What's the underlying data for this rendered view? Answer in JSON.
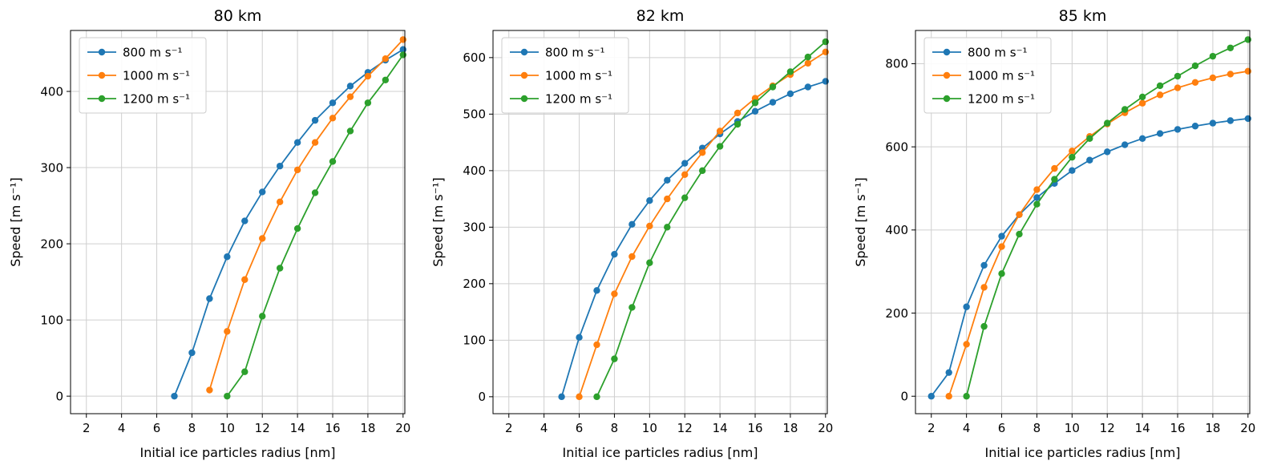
{
  "figure": {
    "background": "#ffffff"
  },
  "chart_data": [
    {
      "type": "line",
      "title": "80 km",
      "xlabel": "Initial ice particles radius [nm]",
      "ylabel": "Speed [m s⁻¹]",
      "xlim": [
        1.1,
        20.1
      ],
      "ylim": [
        -23,
        480
      ],
      "xticks": [
        2,
        4,
        6,
        8,
        10,
        12,
        14,
        16,
        18,
        20
      ],
      "yticks": [
        0,
        100,
        200,
        300,
        400
      ],
      "grid": true,
      "legend_position": "upper left",
      "series": [
        {
          "name": "800 m s⁻¹",
          "color": "#1f77b4",
          "x": [
            7,
            8,
            9,
            10,
            11,
            12,
            13,
            14,
            15,
            16,
            17,
            18,
            19,
            20
          ],
          "y": [
            0,
            57,
            128,
            183,
            230,
            268,
            302,
            333,
            362,
            385,
            407,
            425,
            441,
            455
          ]
        },
        {
          "name": "1000 m s⁻¹",
          "color": "#ff7f0e",
          "x": [
            9,
            10,
            11,
            12,
            13,
            14,
            15,
            16,
            17,
            18,
            19,
            20
          ],
          "y": [
            8,
            85,
            153,
            207,
            255,
            297,
            333,
            365,
            393,
            420,
            443,
            468
          ]
        },
        {
          "name": "1200 m s⁻¹",
          "color": "#2ca02c",
          "x": [
            10,
            11,
            12,
            13,
            14,
            15,
            16,
            17,
            18,
            19,
            20
          ],
          "y": [
            0,
            32,
            105,
            168,
            220,
            267,
            308,
            348,
            385,
            415,
            448
          ]
        }
      ]
    },
    {
      "type": "line",
      "title": "82 km",
      "xlabel": "Initial ice particles radius [nm]",
      "ylabel": "Speed [m s⁻¹]",
      "xlim": [
        1.1,
        20.1
      ],
      "ylim": [
        -30,
        648
      ],
      "xticks": [
        2,
        4,
        6,
        8,
        10,
        12,
        14,
        16,
        18,
        20
      ],
      "yticks": [
        0,
        100,
        200,
        300,
        400,
        500,
        600
      ],
      "grid": true,
      "legend_position": "upper left",
      "series": [
        {
          "name": "800 m s⁻¹",
          "color": "#1f77b4",
          "x": [
            5,
            6,
            7,
            8,
            9,
            10,
            11,
            12,
            13,
            14,
            15,
            16,
            17,
            18,
            19,
            20
          ],
          "y": [
            0,
            105,
            188,
            252,
            305,
            347,
            383,
            413,
            440,
            465,
            487,
            505,
            521,
            536,
            548,
            558
          ]
        },
        {
          "name": "1000 m s⁻¹",
          "color": "#ff7f0e",
          "x": [
            6,
            7,
            8,
            9,
            10,
            11,
            12,
            13,
            14,
            15,
            16,
            17,
            18,
            19,
            20
          ],
          "y": [
            0,
            92,
            182,
            248,
            302,
            350,
            393,
            432,
            470,
            502,
            528,
            550,
            570,
            590,
            610
          ]
        },
        {
          "name": "1200 m s⁻¹",
          "color": "#2ca02c",
          "x": [
            7,
            8,
            9,
            10,
            11,
            12,
            13,
            14,
            15,
            16,
            17,
            18,
            19,
            20
          ],
          "y": [
            0,
            67,
            158,
            237,
            300,
            352,
            400,
            443,
            482,
            520,
            548,
            575,
            601,
            628
          ]
        }
      ]
    },
    {
      "type": "line",
      "title": "85 km",
      "xlabel": "Initial ice particles radius [nm]",
      "ylabel": "Speed [m s⁻¹]",
      "xlim": [
        1.1,
        20.1
      ],
      "ylim": [
        -42,
        880
      ],
      "xticks": [
        2,
        4,
        6,
        8,
        10,
        12,
        14,
        16,
        18,
        20
      ],
      "yticks": [
        0,
        200,
        400,
        600,
        800
      ],
      "grid": true,
      "legend_position": "upper left",
      "series": [
        {
          "name": "800 m s⁻¹",
          "color": "#1f77b4",
          "x": [
            2,
            3,
            4,
            5,
            6,
            7,
            8,
            9,
            10,
            11,
            12,
            13,
            14,
            15,
            16,
            17,
            18,
            19,
            20
          ],
          "y": [
            0,
            57,
            215,
            315,
            385,
            437,
            478,
            512,
            543,
            568,
            588,
            605,
            620,
            632,
            642,
            650,
            657,
            663,
            668
          ]
        },
        {
          "name": "1000 m s⁻¹",
          "color": "#ff7f0e",
          "x": [
            3,
            4,
            5,
            6,
            7,
            8,
            9,
            10,
            11,
            12,
            13,
            14,
            15,
            16,
            17,
            18,
            19,
            20
          ],
          "y": [
            0,
            125,
            262,
            360,
            437,
            497,
            548,
            590,
            625,
            655,
            682,
            705,
            725,
            742,
            755,
            766,
            775,
            782
          ]
        },
        {
          "name": "1200 m s⁻¹",
          "color": "#2ca02c",
          "x": [
            4,
            5,
            6,
            7,
            8,
            9,
            10,
            11,
            12,
            13,
            14,
            15,
            16,
            17,
            18,
            19,
            20
          ],
          "y": [
            0,
            168,
            295,
            390,
            462,
            522,
            575,
            620,
            657,
            690,
            720,
            747,
            770,
            795,
            818,
            838,
            858
          ]
        }
      ]
    }
  ],
  "style": {
    "grid_color": "#cfcfcf",
    "axes_edge_color": "#000000",
    "legend_border_color": "#cccccc"
  }
}
